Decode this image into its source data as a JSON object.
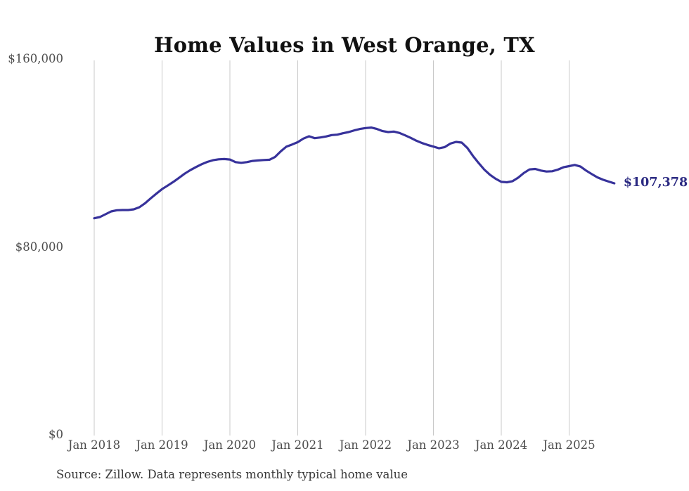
{
  "source_note": "Source: Zillow. Data represents monthly typical home value",
  "colors": {
    "line": "#37329b",
    "end_label": "#2b2a82",
    "gridline": "#c9c9c9",
    "title_text": "#111111",
    "axis_text": "#4c4c4c",
    "source_text": "#383838",
    "background": "#ffffff"
  },
  "chart_data": {
    "type": "line",
    "title": "Home Values in West Orange, TX",
    "x_tick_labels": [
      "Jan 2018",
      "Jan 2019",
      "Jan 2020",
      "Jan 2021",
      "Jan 2022",
      "Jan 2023",
      "Jan 2024",
      "Jan 2025"
    ],
    "y_ticks": [
      {
        "label": "$0",
        "value": 0
      },
      {
        "label": "$80,000",
        "value": 80000
      },
      {
        "label": "$160,000",
        "value": 160000
      }
    ],
    "ylim": [
      0,
      160000
    ],
    "x_range": {
      "start": "Jan 2018",
      "end": "Sep 2025",
      "interval": "monthly"
    },
    "grid": "vertical",
    "legend": "none",
    "last_value": 107378,
    "last_value_label": "$107,378",
    "series": [
      {
        "name": "Typical home value",
        "color": "#37329b",
        "values": [
          92500,
          93000,
          94200,
          95400,
          95900,
          96000,
          96000,
          96300,
          97200,
          98900,
          101000,
          103000,
          104900,
          106400,
          108000,
          109700,
          111500,
          113000,
          114300,
          115500,
          116500,
          117200,
          117600,
          117700,
          117500,
          116400,
          116100,
          116400,
          116900,
          117100,
          117300,
          117400,
          118600,
          121000,
          123000,
          123900,
          124900,
          126400,
          127400,
          126600,
          126900,
          127300,
          127900,
          128100,
          128700,
          129200,
          129900,
          130500,
          130900,
          131100,
          130500,
          129600,
          129200,
          129400,
          128800,
          127800,
          126700,
          125500,
          124500,
          123700,
          123000,
          122300,
          122800,
          124300,
          125000,
          124700,
          122400,
          119000,
          116000,
          113200,
          111000,
          109300,
          108000,
          107800,
          108300,
          109800,
          111800,
          113300,
          113500,
          112800,
          112400,
          112500,
          113200,
          114200,
          114700,
          115200,
          114500,
          112800,
          111300,
          109900,
          108900,
          108100,
          107378
        ]
      }
    ]
  }
}
